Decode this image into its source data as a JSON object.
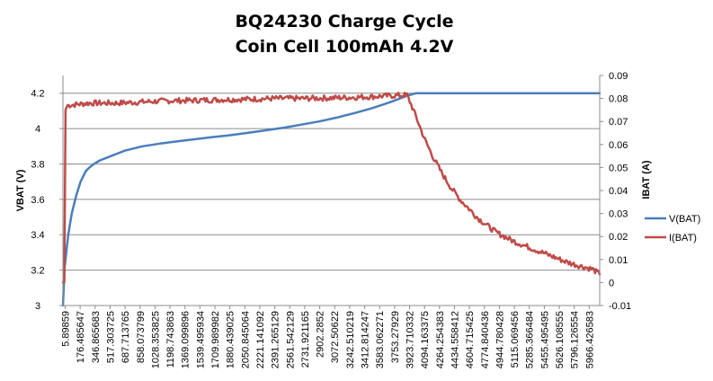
{
  "chart_data": {
    "type": "line",
    "title": "BQ24230  Charge Cycle",
    "subtitle": "Coin Cell 100mAh 4.2V",
    "ylabel": "VBAT (V)",
    "y2label": "IBAT (A)",
    "xlabel": "",
    "x_tick_labels": [
      "5.89859",
      "176.485647",
      "346.865683",
      "517.303725",
      "687.713765",
      "858.073799",
      "1028.353825",
      "1198.743863",
      "1369.099896",
      "1539.495934",
      "1709.989982",
      "1880.439025",
      "2050.845064",
      "2221.141092",
      "2391.265129",
      "2561.542129",
      "2731.921165",
      "2902.2852",
      "3072.50622",
      "3242.510219",
      "3412.814247",
      "3583.062271",
      "3753.27929",
      "3923.710332",
      "4094.163375",
      "4264.254383",
      "4434.558412",
      "4604.715425",
      "4774.840436",
      "4944.780428",
      "5115.069456",
      "5285.366484",
      "5455.495495",
      "5626.108555",
      "5796.126554",
      "5966.426583"
    ],
    "xlim": [
      0,
      6080
    ],
    "ylim": [
      3,
      4.3
    ],
    "y_ticks": [
      "3",
      "3.2",
      "3.4",
      "3.6",
      "3.8",
      "4",
      "4.2"
    ],
    "y2lim": [
      -0.01,
      0.09
    ],
    "y2_ticks": [
      "-0.01",
      "0",
      "0.01",
      "0.02",
      "0.03",
      "0.04",
      "0.05",
      "0.06",
      "0.07",
      "0.08",
      "0.09"
    ],
    "grid": true,
    "legend_position": "right",
    "series": [
      {
        "name": "V(BAT)",
        "axis": "left",
        "color": "#4a7ebb",
        "x": [
          0,
          20,
          60,
          100,
          150,
          200,
          260,
          300,
          350,
          420,
          520,
          700,
          900,
          1100,
          1300,
          1500,
          1700,
          1900,
          2100,
          2300,
          2500,
          2700,
          2900,
          3100,
          3300,
          3500,
          3700,
          3900,
          4000,
          4200,
          4600,
          5000,
          5400,
          5800,
          6080
        ],
        "y": [
          3.0,
          3.22,
          3.4,
          3.52,
          3.62,
          3.7,
          3.76,
          3.78,
          3.8,
          3.82,
          3.84,
          3.875,
          3.9,
          3.915,
          3.928,
          3.94,
          3.952,
          3.963,
          3.976,
          3.99,
          4.005,
          4.022,
          4.04,
          4.062,
          4.087,
          4.115,
          4.148,
          4.185,
          4.2,
          4.2,
          4.2,
          4.2,
          4.2,
          4.2,
          4.2
        ]
      },
      {
        "name": "I(BAT)",
        "axis": "right",
        "color": "#be4b48",
        "x": [
          0,
          15,
          30,
          50,
          300,
          600,
          900,
          1200,
          1500,
          1800,
          2100,
          2400,
          2700,
          3000,
          3300,
          3500,
          3700,
          3900,
          4000,
          4100,
          4200,
          4300,
          4400,
          4500,
          4600,
          4700,
          4800,
          4900,
          5000,
          5100,
          5200,
          5300,
          5400,
          5500,
          5600,
          5700,
          5800,
          5900,
          6000,
          6080
        ],
        "y": [
          0.0,
          0.0,
          0.075,
          0.077,
          0.078,
          0.078,
          0.0785,
          0.079,
          0.0792,
          0.0795,
          0.0797,
          0.08,
          0.08,
          0.0802,
          0.0805,
          0.0808,
          0.0812,
          0.0815,
          0.072,
          0.062,
          0.054,
          0.047,
          0.041,
          0.036,
          0.032,
          0.028,
          0.025,
          0.022,
          0.02,
          0.018,
          0.0165,
          0.015,
          0.0135,
          0.012,
          0.0105,
          0.009,
          0.0078,
          0.0068,
          0.0058,
          0.0035
        ]
      }
    ]
  }
}
